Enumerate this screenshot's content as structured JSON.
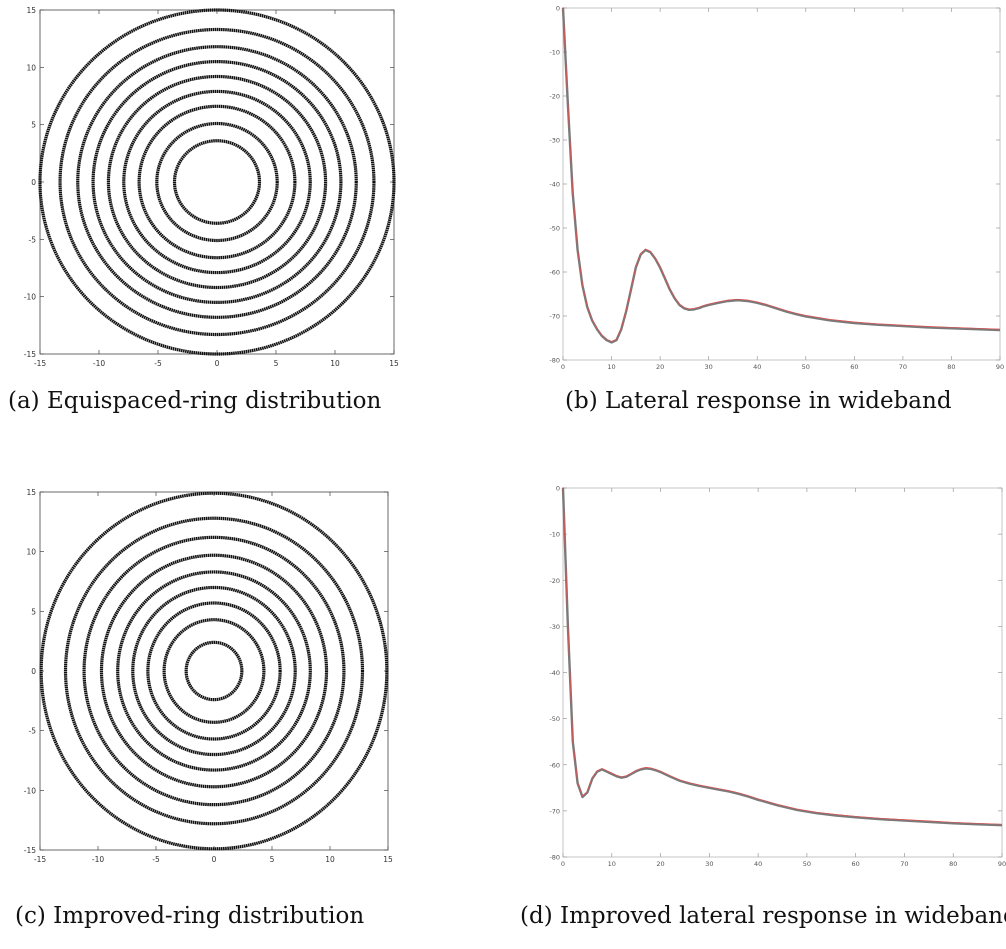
{
  "chart_data": [
    {
      "type": "scatter",
      "subtitle": "(a) Equispaced-ring distribution",
      "xlim": [
        -15,
        15
      ],
      "ylim": [
        -15,
        15
      ],
      "x_ticks": [
        -15,
        -10,
        -5,
        0,
        5,
        10,
        15
      ],
      "y_ticks": [
        -15,
        -10,
        -5,
        0,
        5,
        10,
        15
      ],
      "ring_radii": [
        3.6,
        5.1,
        6.6,
        7.9,
        9.2,
        10.5,
        11.8,
        13.3,
        15.0
      ],
      "series_color": "#111111",
      "grid": false
    },
    {
      "type": "line",
      "subtitle": "(b) Lateral response in wideband",
      "xlim": [
        0,
        90
      ],
      "ylim": [
        -80,
        0
      ],
      "x_ticks": [
        0,
        10,
        20,
        30,
        40,
        50,
        60,
        70,
        80,
        90
      ],
      "y_ticks": [
        0,
        -10,
        -20,
        -30,
        -40,
        -50,
        -60,
        -70,
        -80
      ],
      "series": [
        {
          "x": [
            0,
            1,
            2,
            3,
            4,
            5,
            6,
            7,
            8,
            9,
            10,
            11,
            12,
            13,
            14,
            15,
            16,
            17,
            18,
            19,
            20,
            21,
            22,
            23,
            24,
            25,
            26,
            27,
            28,
            29,
            30,
            32,
            34,
            36,
            38,
            40,
            42,
            44,
            46,
            48,
            50,
            55,
            60,
            65,
            70,
            75,
            80,
            85,
            90
          ],
          "y": [
            0,
            -22,
            -42,
            -55,
            -63,
            -68,
            -71,
            -73,
            -74.5,
            -75.5,
            -76,
            -75.5,
            -73,
            -69,
            -64,
            -59,
            -56,
            -55,
            -55.5,
            -57,
            -59,
            -61.5,
            -64,
            -66,
            -67.5,
            -68.3,
            -68.6,
            -68.5,
            -68.2,
            -67.8,
            -67.5,
            -67,
            -66.6,
            -66.4,
            -66.6,
            -67,
            -67.6,
            -68.3,
            -69,
            -69.6,
            -70.1,
            -71,
            -71.6,
            -72,
            -72.3,
            -72.6,
            -72.8,
            -73,
            -73.2
          ]
        }
      ],
      "series_colors": [
        "#7a7a7a",
        "#e05050"
      ],
      "grid": false
    },
    {
      "type": "scatter",
      "subtitle": "(c) Improved-ring distribution",
      "xlim": [
        -15,
        15
      ],
      "ylim": [
        -15,
        15
      ],
      "x_ticks": [
        -15,
        -10,
        -5,
        0,
        5,
        10,
        15
      ],
      "y_ticks": [
        -15,
        -10,
        -5,
        0,
        5,
        10,
        15
      ],
      "ring_radii": [
        2.4,
        4.3,
        5.7,
        7.0,
        8.3,
        9.7,
        11.2,
        12.8,
        14.9
      ],
      "series_color": "#111111",
      "grid": false
    },
    {
      "type": "line",
      "subtitle": "(d) Improved lateral response in wideband",
      "xlim": [
        0,
        90
      ],
      "ylim": [
        -80,
        0
      ],
      "x_ticks": [
        0,
        10,
        20,
        30,
        40,
        50,
        60,
        70,
        80,
        90
      ],
      "y_ticks": [
        0,
        -10,
        -20,
        -30,
        -40,
        -50,
        -60,
        -70,
        -80
      ],
      "series": [
        {
          "x": [
            0,
            1,
            2,
            3,
            4,
            5,
            6,
            7,
            8,
            9,
            10,
            11,
            12,
            13,
            14,
            15,
            16,
            17,
            18,
            19,
            20,
            22,
            24,
            26,
            28,
            30,
            32,
            34,
            36,
            38,
            40,
            44,
            48,
            52,
            56,
            60,
            65,
            70,
            75,
            80,
            85,
            90
          ],
          "y": [
            0,
            -30,
            -55,
            -64,
            -67,
            -66,
            -63,
            -61.5,
            -61,
            -61.5,
            -62,
            -62.5,
            -62.8,
            -62.6,
            -62,
            -61.4,
            -61,
            -60.8,
            -60.9,
            -61.2,
            -61.6,
            -62.6,
            -63.5,
            -64.1,
            -64.6,
            -65,
            -65.4,
            -65.8,
            -66.3,
            -66.9,
            -67.6,
            -68.8,
            -69.8,
            -70.5,
            -71,
            -71.4,
            -71.8,
            -72.1,
            -72.4,
            -72.7,
            -72.9,
            -73.1
          ]
        }
      ],
      "series_colors": [
        "#7a7a7a",
        "#e05050"
      ],
      "grid": false
    }
  ]
}
